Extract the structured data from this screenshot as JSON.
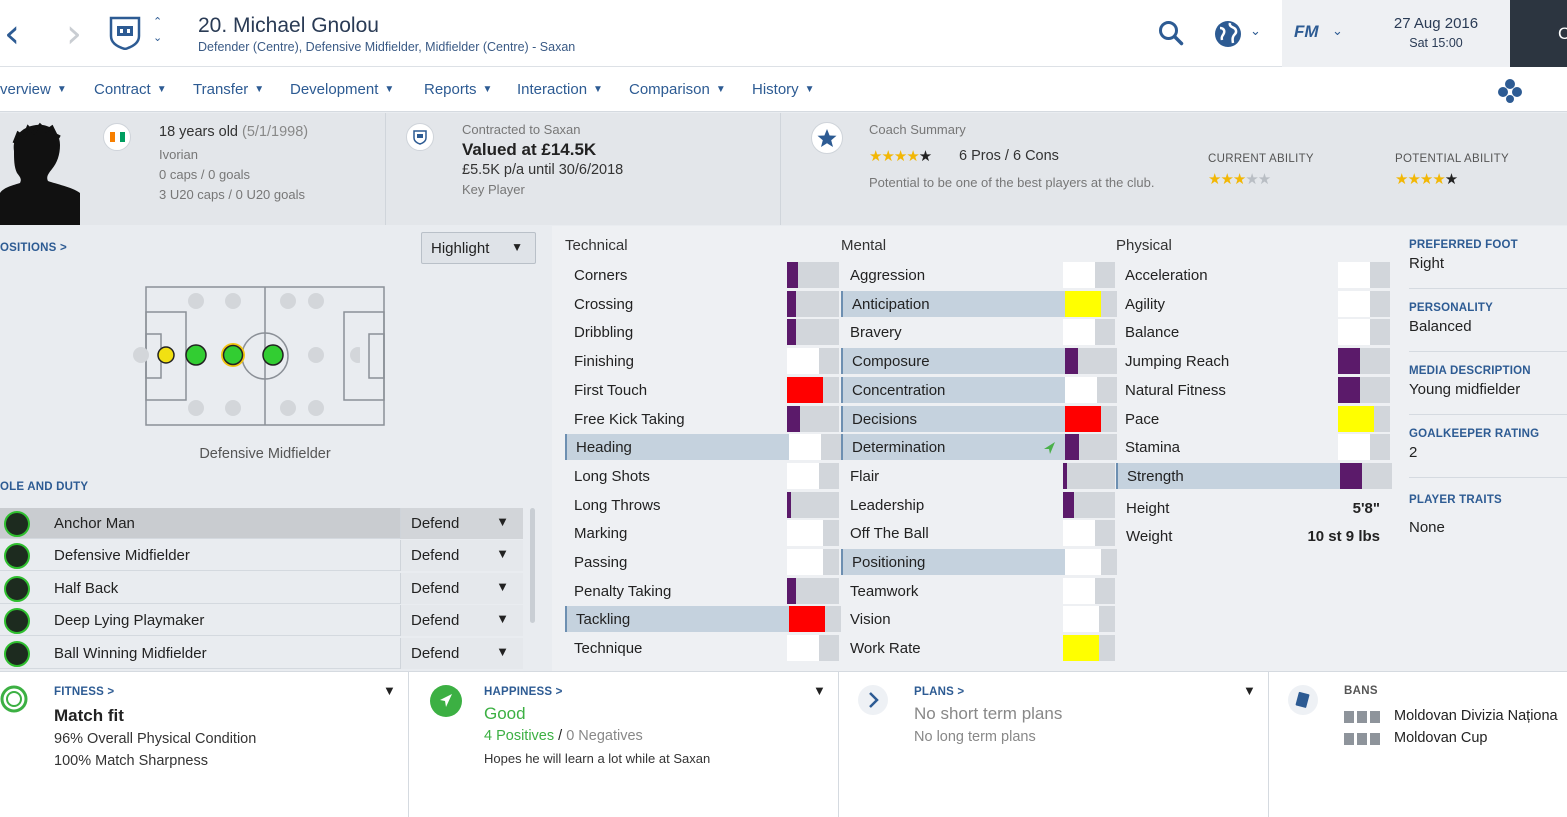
{
  "header": {
    "title": "20. Michael Gnolou",
    "subtitle": "Defender (Centre), Defensive Midfielder, Midfielder (Centre) - Saxan",
    "logo_text": "FM",
    "date": "27 Aug 2016",
    "time": "Sat 15:00",
    "dark_partial": "C"
  },
  "tabs": [
    {
      "label": "verview"
    },
    {
      "label": "Contract"
    },
    {
      "label": "Transfer"
    },
    {
      "label": "Development"
    },
    {
      "label": "Reports"
    },
    {
      "label": "Interaction"
    },
    {
      "label": "Comparison"
    },
    {
      "label": "History"
    }
  ],
  "profile": {
    "age": "18 years old",
    "dob": "(5/1/1998)",
    "nationality": "Ivorian",
    "caps": "0 caps / 0 goals",
    "u20": "3 U20 caps / 0 U20 goals"
  },
  "contract": {
    "label": "Contracted to Saxan",
    "value": "Valued at £14.5K",
    "wage": "£5.5K p/a until 30/6/2018",
    "status": "Key Player"
  },
  "coach": {
    "label": "Coach Summary",
    "pros_cons": "6 Pros / 6 Cons",
    "text": "Potential to be one of the best players at the club.",
    "rating_stars": 4.5,
    "current_ability_label": "CURRENT ABILITY",
    "current_ability_stars": 3,
    "potential_ability_label": "POTENTIAL ABILITY",
    "potential_ability_stars": 4.5
  },
  "positions": {
    "link": "OSITIONS >",
    "highlight": "Highlight",
    "pitch_caption": "Defensive Midfielder"
  },
  "roles": {
    "title": "OLE AND DUTY",
    "items": [
      {
        "name": "Anchor Man",
        "duty": "Defend"
      },
      {
        "name": "Defensive Midfielder",
        "duty": "Defend"
      },
      {
        "name": "Half Back",
        "duty": "Defend"
      },
      {
        "name": "Deep Lying Playmaker",
        "duty": "Defend"
      },
      {
        "name": "Ball Winning Midfielder",
        "duty": "Defend"
      }
    ]
  },
  "attributes": {
    "technical_label": "Technical",
    "mental_label": "Mental",
    "physical_label": "Physical",
    "technical": [
      {
        "name": "Corners",
        "level": 0.3,
        "color": "#5b1a6a",
        "hl": false
      },
      {
        "name": "Crossing",
        "level": 0.25,
        "color": "#5b1a6a",
        "hl": false
      },
      {
        "name": "Dribbling",
        "level": 0.25,
        "color": "#5b1a6a",
        "hl": false
      },
      {
        "name": "Finishing",
        "level": 0.9,
        "color": "#ffffff",
        "hl": false
      },
      {
        "name": "First Touch",
        "level": 1.0,
        "color": "#ff0000",
        "hl": false
      },
      {
        "name": "Free Kick Taking",
        "level": 0.35,
        "color": "#5b1a6a",
        "hl": false
      },
      {
        "name": "Heading",
        "level": 0.9,
        "color": "#ffffff",
        "hl": true
      },
      {
        "name": "Long Shots",
        "level": 0.9,
        "color": "#ffffff",
        "hl": false
      },
      {
        "name": "Long Throws",
        "level": 0.1,
        "color": "#5b1a6a",
        "hl": false
      },
      {
        "name": "Marking",
        "level": 1.0,
        "color": "#ffffff",
        "hl": false
      },
      {
        "name": "Passing",
        "level": 1.0,
        "color": "#ffffff",
        "hl": false
      },
      {
        "name": "Penalty Taking",
        "level": 0.25,
        "color": "#5b1a6a",
        "hl": false
      },
      {
        "name": "Tackling",
        "level": 1.0,
        "color": "#ff0000",
        "hl": true
      },
      {
        "name": "Technique",
        "level": 0.9,
        "color": "#ffffff",
        "hl": false
      }
    ],
    "mental": [
      {
        "name": "Aggression",
        "level": 0.9,
        "color": "#ffffff",
        "hl": false
      },
      {
        "name": "Anticipation",
        "level": 1.0,
        "color": "#ffff00",
        "hl": true
      },
      {
        "name": "Bravery",
        "level": 0.9,
        "color": "#ffffff",
        "hl": false
      },
      {
        "name": "Composure",
        "level": 0.35,
        "color": "#5b1a6a",
        "hl": true
      },
      {
        "name": "Concentration",
        "level": 0.9,
        "color": "#ffffff",
        "hl": true
      },
      {
        "name": "Decisions",
        "level": 1.0,
        "color": "#ff0000",
        "hl": true
      },
      {
        "name": "Determination",
        "level": 0.4,
        "color": "#5b1a6a",
        "hl": true
      },
      {
        "name": "Flair",
        "level": 0.1,
        "color": "#5b1a6a",
        "hl": false
      },
      {
        "name": "Leadership",
        "level": 0.3,
        "color": "#5b1a6a",
        "hl": false
      },
      {
        "name": "Off The Ball",
        "level": 0.9,
        "color": "#ffffff",
        "hl": false
      },
      {
        "name": "Positioning",
        "level": 1.0,
        "color": "#ffffff",
        "hl": true
      },
      {
        "name": "Teamwork",
        "level": 0.9,
        "color": "#ffffff",
        "hl": false
      },
      {
        "name": "Vision",
        "level": 1.0,
        "color": "#ffffff",
        "hl": false
      },
      {
        "name": "Work Rate",
        "level": 1.0,
        "color": "#ffff00",
        "hl": false
      }
    ],
    "physical": [
      {
        "name": "Acceleration",
        "level": 0.9,
        "color": "#ffffff",
        "hl": false
      },
      {
        "name": "Agility",
        "level": 0.9,
        "color": "#ffffff",
        "hl": false
      },
      {
        "name": "Balance",
        "level": 0.9,
        "color": "#ffffff",
        "hl": false
      },
      {
        "name": "Jumping Reach",
        "level": 0.6,
        "color": "#5b1a6a",
        "hl": false
      },
      {
        "name": "Natural Fitness",
        "level": 0.6,
        "color": "#5b1a6a",
        "hl": false
      },
      {
        "name": "Pace",
        "level": 1.0,
        "color": "#ffff00",
        "hl": false
      },
      {
        "name": "Stamina",
        "level": 0.9,
        "color": "#ffffff",
        "hl": false
      },
      {
        "name": "Strength",
        "level": 0.6,
        "color": "#5b1a6a",
        "hl": true
      }
    ],
    "height_label": "Height",
    "height": "5'8\"",
    "weight_label": "Weight",
    "weight": "10 st 9 lbs"
  },
  "meta": {
    "foot_label": "PREFERRED FOOT",
    "foot": "Right",
    "personality_label": "PERSONALITY",
    "personality": "Balanced",
    "media_label": "MEDIA DESCRIPTION",
    "media": "Young midfielder",
    "gk_label": "GOALKEEPER RATING",
    "gk": "2",
    "traits_label": "PLAYER TRAITS",
    "traits": "None"
  },
  "fitness": {
    "label": "FITNESS >",
    "status": "Match fit",
    "condition": "96% Overall Physical Condition",
    "sharpness": "100% Match Sharpness"
  },
  "happiness": {
    "label": "HAPPINESS >",
    "status": "Good",
    "positives": "4 Positives",
    "sep": "/",
    "negatives": "0 Negatives",
    "note": "Hopes he will learn a lot while at Saxan",
    "color": "#3cb043"
  },
  "plans": {
    "label": "PLANS >",
    "short": "No short term plans",
    "long": "No long term plans"
  },
  "bans": {
    "label": "BANS",
    "items": [
      "Moldovan Divizia Naționa",
      "Moldovan Cup"
    ]
  },
  "colors": {
    "accent": "#2d5b93",
    "dark": "#2c3540",
    "highlight_row": "#c5d2de"
  }
}
